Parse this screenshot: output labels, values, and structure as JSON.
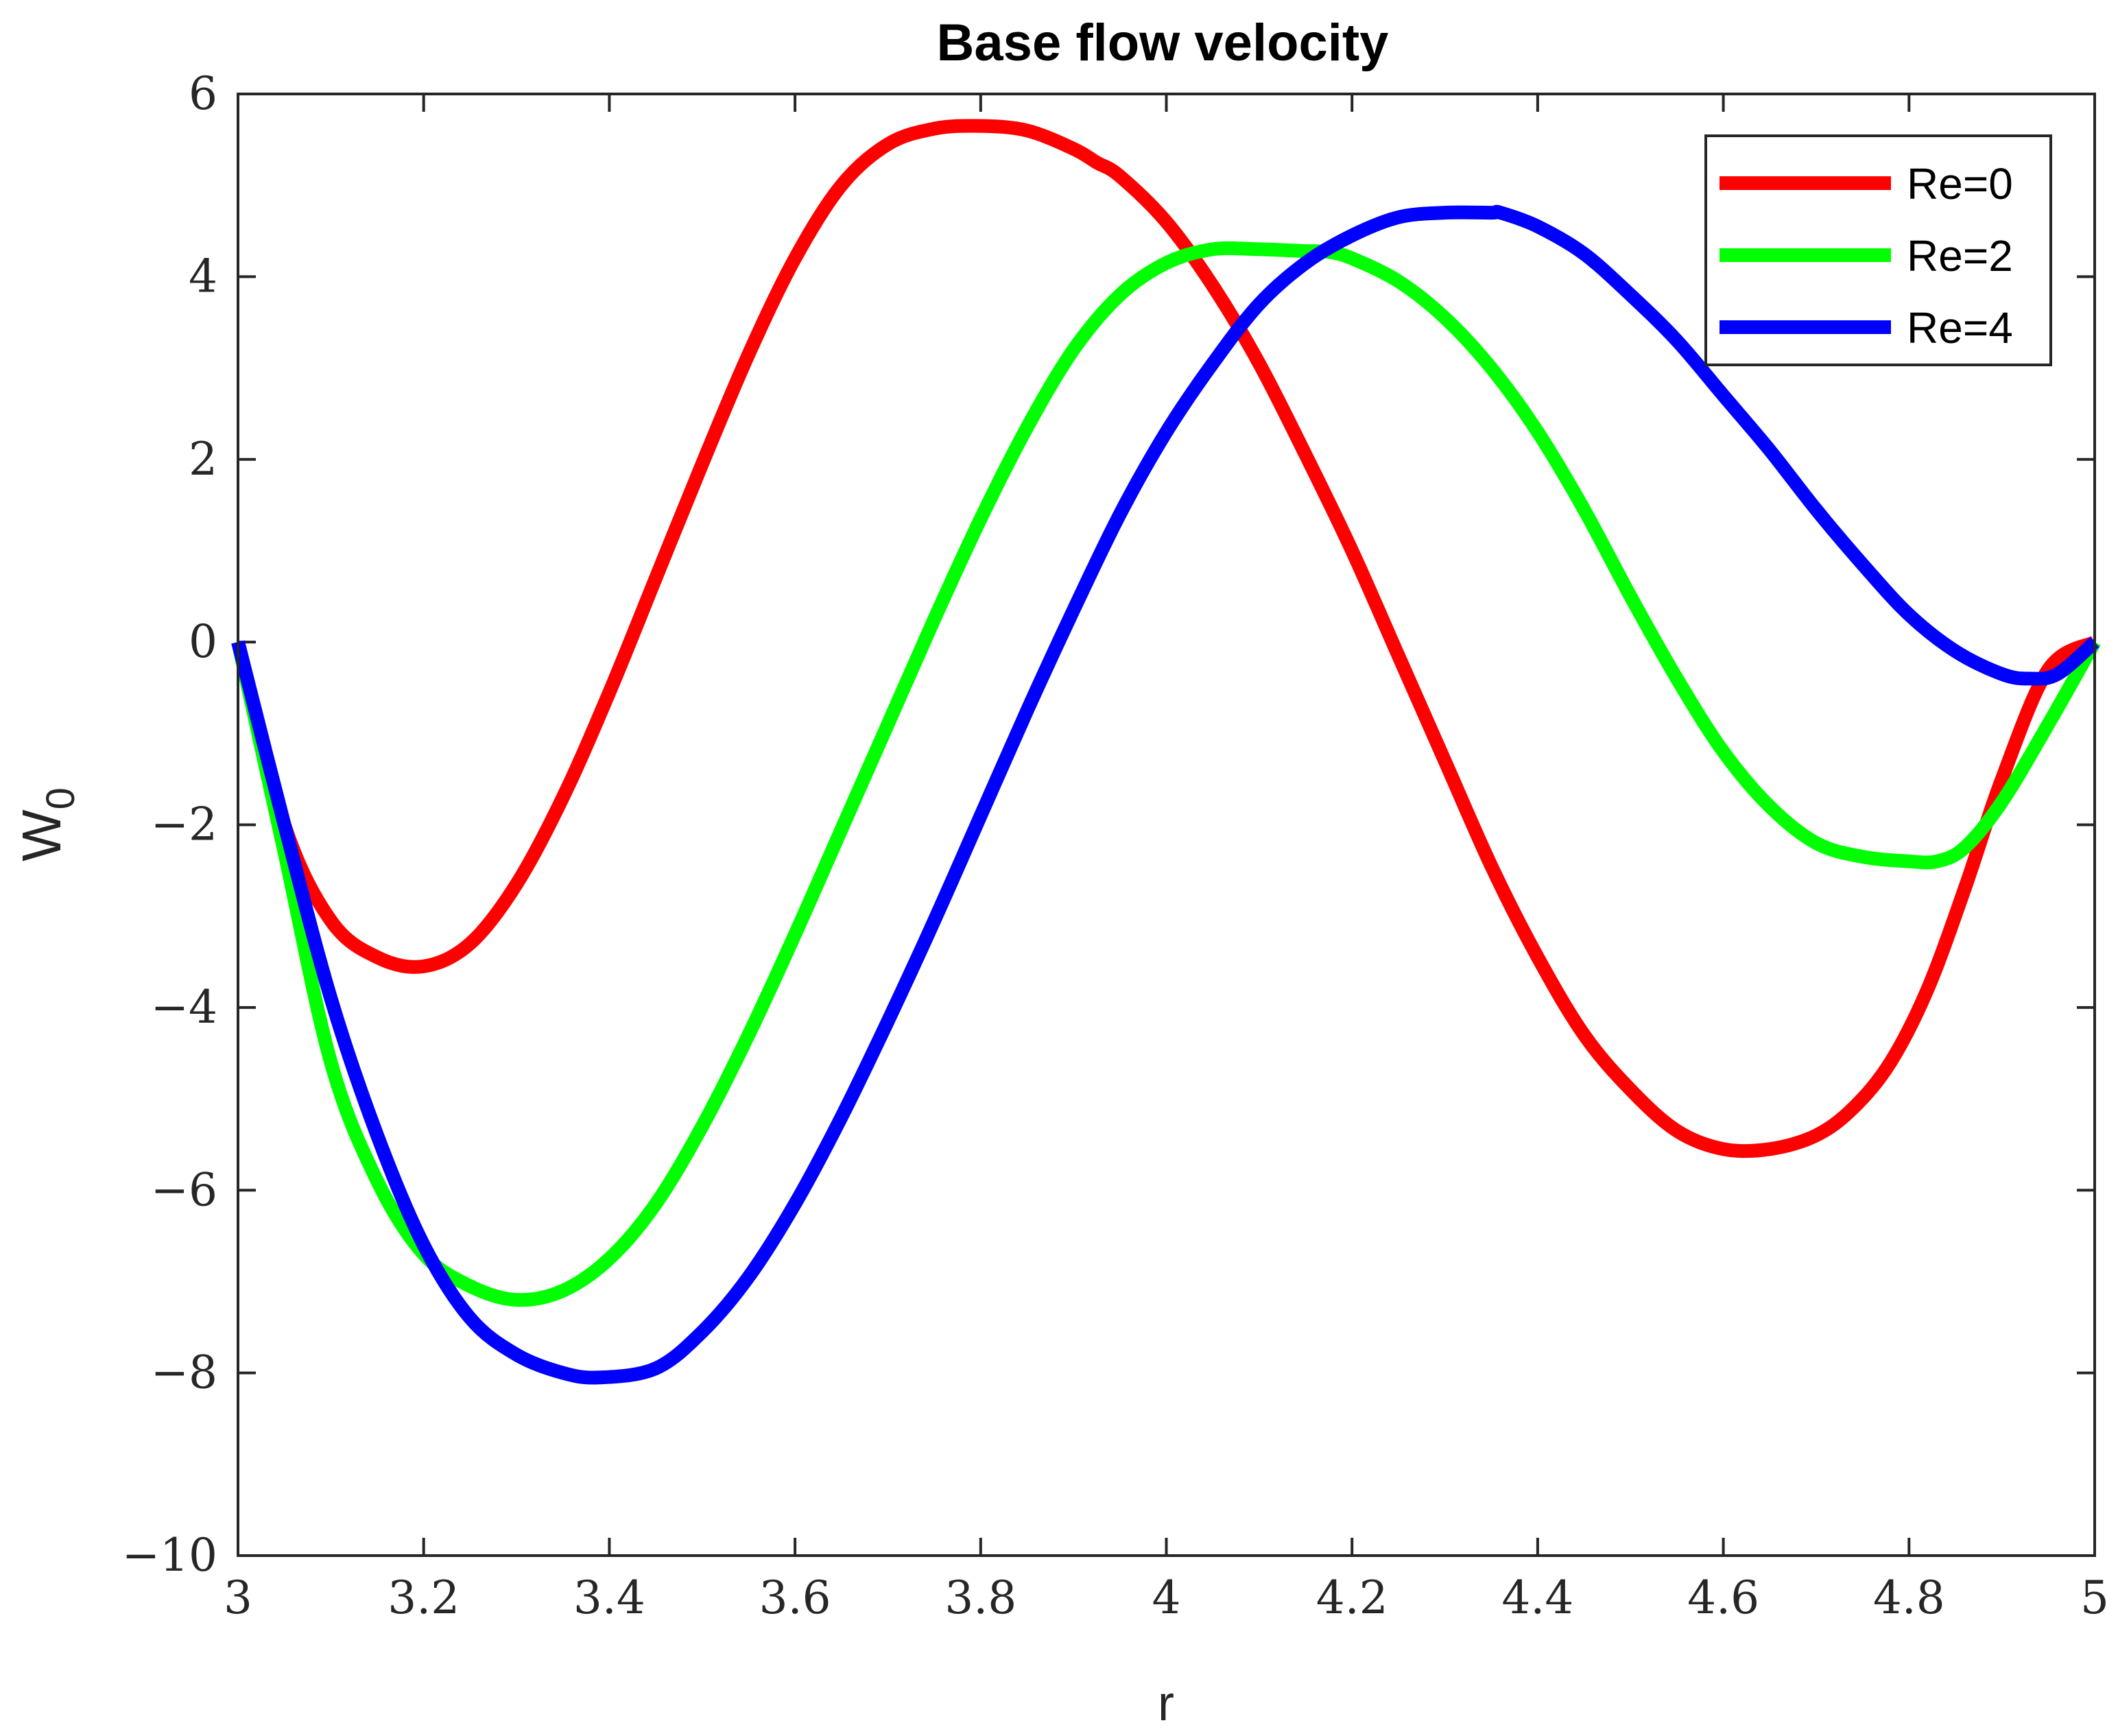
{
  "chart_data": {
    "type": "line",
    "title": "Base flow velocity",
    "xlabel": "r",
    "ylabel_main": "W",
    "ylabel_sub": "0",
    "xlim": [
      3,
      5
    ],
    "ylim": [
      -10,
      6
    ],
    "xticks": [
      3,
      3.2,
      3.4,
      3.6,
      3.8,
      4,
      4.2,
      4.4,
      4.6,
      4.8,
      5
    ],
    "xtick_labels": [
      "3",
      "3.2",
      "3.4",
      "3.6",
      "3.8",
      "4",
      "4.2",
      "4.4",
      "4.6",
      "4.8",
      "5"
    ],
    "yticks": [
      -10,
      -8,
      -6,
      -4,
      -2,
      0,
      2,
      4,
      6
    ],
    "ytick_labels": [
      "−10",
      "−8",
      "−6",
      "−4",
      "−2",
      "0",
      "2",
      "4",
      "6"
    ],
    "grid": false,
    "legend_position": "top-right",
    "series": [
      {
        "name": "Re=0",
        "color": "#ff0000",
        "x": [
          3.0,
          3.05,
          3.1,
          3.15,
          3.2,
          3.25,
          3.3,
          3.35,
          3.4,
          3.45,
          3.5,
          3.55,
          3.6,
          3.65,
          3.7,
          3.75,
          3.8,
          3.85,
          3.9,
          3.925,
          3.95,
          4.0,
          4.05,
          4.1,
          4.15,
          4.2,
          4.25,
          4.3,
          4.35,
          4.4,
          4.45,
          4.5,
          4.55,
          4.6,
          4.65,
          4.7,
          4.74,
          4.78,
          4.82,
          4.86,
          4.9,
          4.95,
          5.0
        ],
        "y": [
          0.0,
          -2.0,
          -3.05,
          -3.45,
          -3.55,
          -3.3,
          -2.65,
          -1.7,
          -0.55,
          0.7,
          1.95,
          3.15,
          4.2,
          5.0,
          5.45,
          5.62,
          5.65,
          5.6,
          5.4,
          5.25,
          5.1,
          4.6,
          3.9,
          3.05,
          2.05,
          1.0,
          -0.15,
          -1.3,
          -2.45,
          -3.45,
          -4.3,
          -4.9,
          -5.35,
          -5.55,
          -5.55,
          -5.4,
          -5.1,
          -4.6,
          -3.8,
          -2.7,
          -1.5,
          -0.3,
          0.0
        ]
      },
      {
        "name": "Re=2",
        "color": "#00ff00",
        "x": [
          3.0,
          3.05,
          3.1,
          3.15,
          3.2,
          3.25,
          3.3,
          3.35,
          3.4,
          3.45,
          3.5,
          3.55,
          3.6,
          3.65,
          3.7,
          3.75,
          3.8,
          3.85,
          3.9,
          3.95,
          4.0,
          4.05,
          4.1,
          4.15,
          4.175,
          4.2,
          4.25,
          4.3,
          4.35,
          4.4,
          4.45,
          4.5,
          4.55,
          4.6,
          4.65,
          4.7,
          4.75,
          4.8,
          4.83,
          4.86,
          4.9,
          4.95,
          5.0
        ],
        "y": [
          0.0,
          -2.3,
          -4.6,
          -5.9,
          -6.7,
          -7.05,
          -7.2,
          -7.1,
          -6.75,
          -6.15,
          -5.3,
          -4.3,
          -3.2,
          -2.05,
          -0.9,
          0.25,
          1.35,
          2.35,
          3.2,
          3.8,
          4.15,
          4.3,
          4.3,
          4.28,
          4.27,
          4.2,
          3.95,
          3.55,
          3.0,
          2.3,
          1.45,
          0.5,
          -0.4,
          -1.2,
          -1.8,
          -2.2,
          -2.35,
          -2.4,
          -2.4,
          -2.25,
          -1.75,
          -0.9,
          0.0
        ]
      },
      {
        "name": "Re=4",
        "color": "#0000ff",
        "x": [
          3.0,
          3.05,
          3.1,
          3.15,
          3.2,
          3.25,
          3.3,
          3.35,
          3.39,
          3.45,
          3.5,
          3.55,
          3.6,
          3.65,
          3.7,
          3.75,
          3.8,
          3.85,
          3.9,
          3.95,
          4.0,
          4.05,
          4.1,
          4.15,
          4.2,
          4.25,
          4.3,
          4.35,
          4.36,
          4.4,
          4.45,
          4.5,
          4.55,
          4.6,
          4.65,
          4.7,
          4.75,
          4.8,
          4.85,
          4.9,
          4.93,
          4.96,
          5.0
        ],
        "y": [
          0.0,
          -2.0,
          -3.9,
          -5.4,
          -6.6,
          -7.4,
          -7.8,
          -8.0,
          -8.05,
          -7.95,
          -7.55,
          -6.95,
          -6.15,
          -5.2,
          -4.15,
          -3.05,
          -1.9,
          -0.75,
          0.35,
          1.4,
          2.3,
          3.05,
          3.7,
          4.15,
          4.45,
          4.65,
          4.7,
          4.7,
          4.7,
          4.55,
          4.25,
          3.8,
          3.3,
          2.7,
          2.1,
          1.45,
          0.85,
          0.3,
          -0.1,
          -0.35,
          -0.4,
          -0.35,
          0.0
        ]
      }
    ]
  }
}
